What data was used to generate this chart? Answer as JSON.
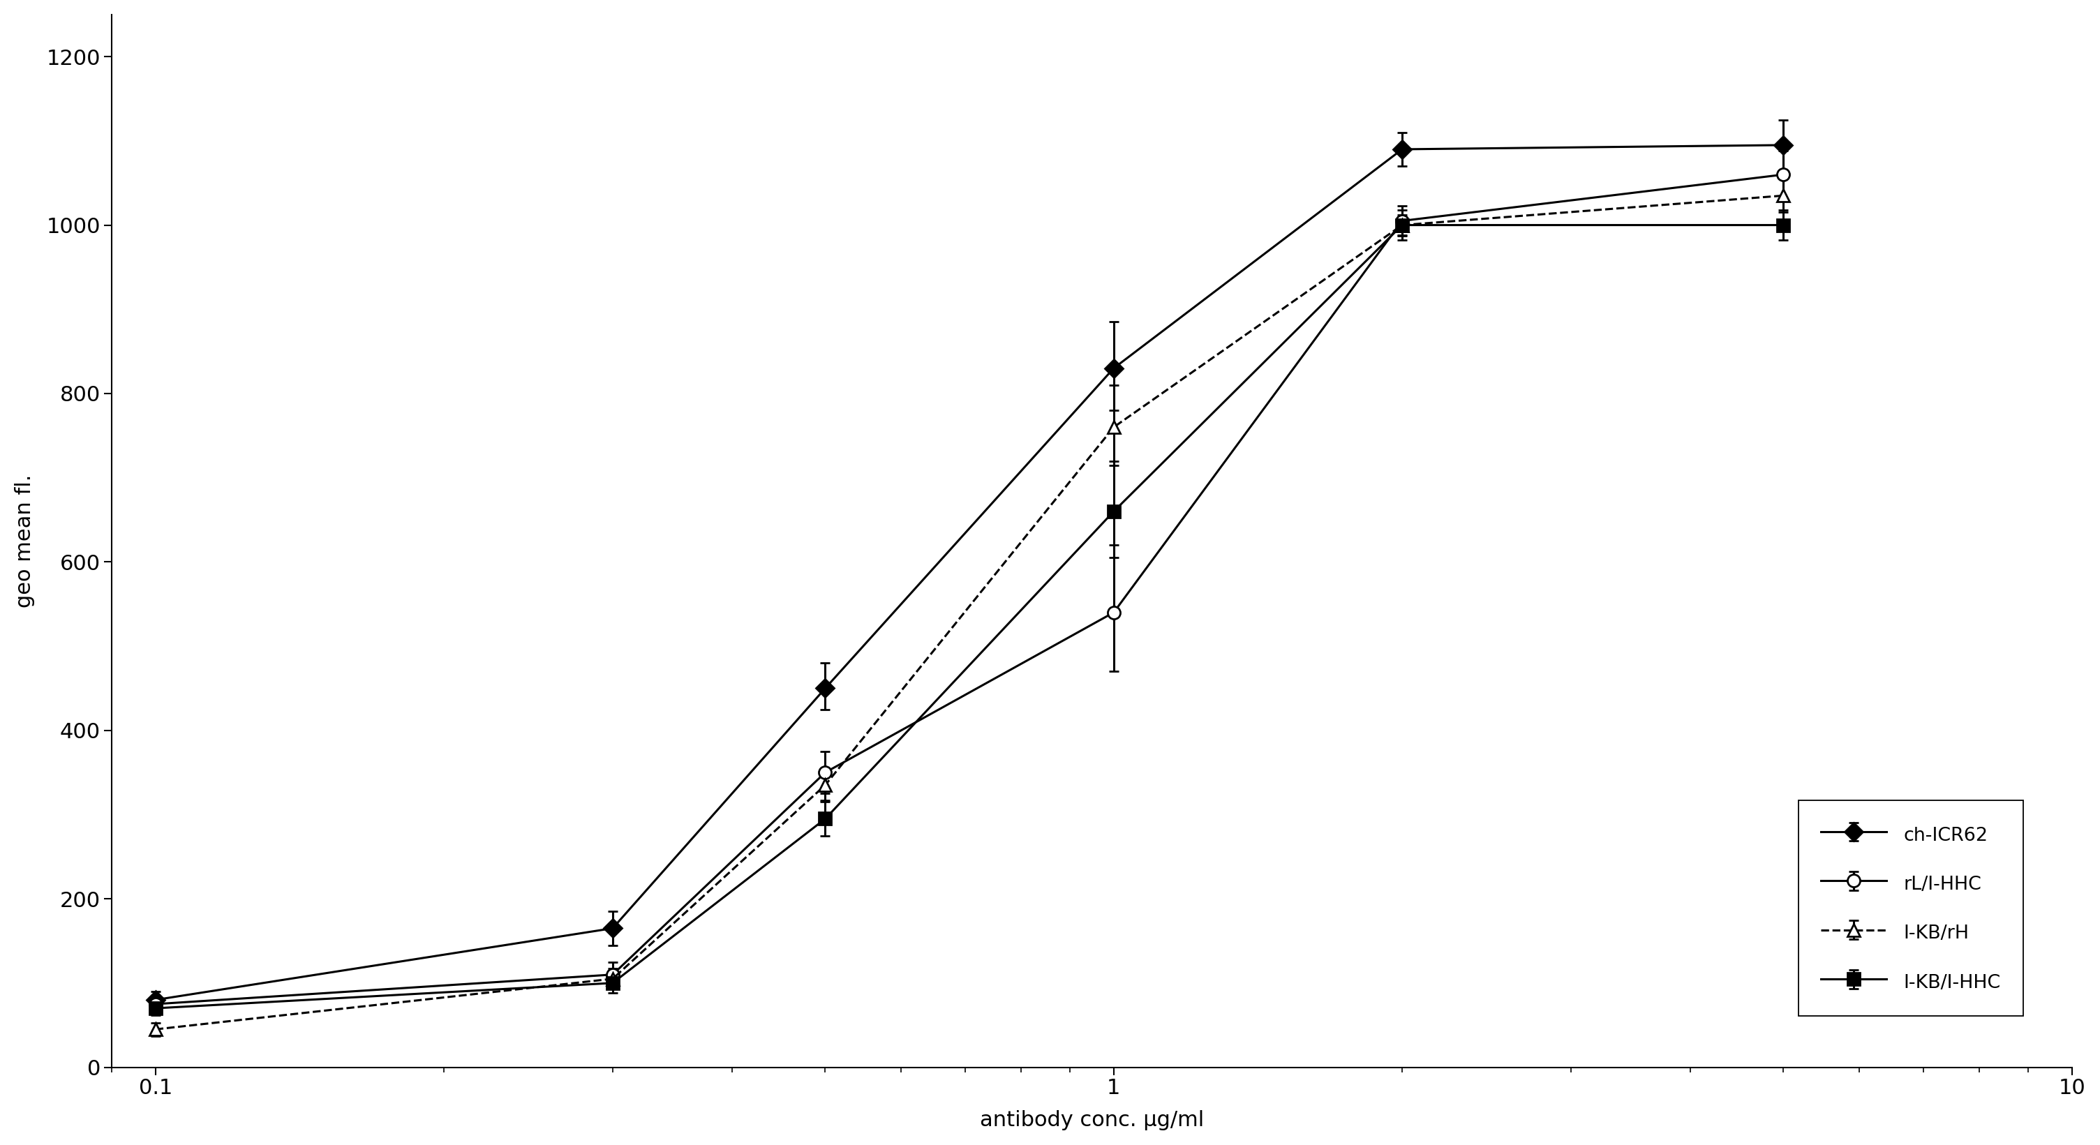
{
  "xlabel": "antibody conc. μg/ml",
  "ylabel": "geo mean fl.",
  "xlim": [
    0.09,
    10
  ],
  "ylim": [
    0,
    1250
  ],
  "yticks": [
    0,
    200,
    400,
    600,
    800,
    1000,
    1200
  ],
  "xticks": [
    0.1,
    1.0,
    10.0
  ],
  "xtick_labels": [
    "0.1",
    "1",
    "10"
  ],
  "background_color": "#ffffff",
  "fontsize": 22,
  "marker_size": 13,
  "linewidth": 2.2,
  "capsize": 5,
  "series": [
    {
      "label": "ch-ICR62",
      "marker": "D",
      "marker_filled": true,
      "linestyle": "-",
      "x": [
        0.1,
        0.3,
        0.5,
        1.0,
        2.0,
        5.0
      ],
      "y": [
        80,
        165,
        450,
        830,
        1090,
        1095
      ],
      "yerr_low": [
        10,
        20,
        25,
        50,
        20,
        30
      ],
      "yerr_high": [
        10,
        20,
        30,
        55,
        20,
        30
      ]
    },
    {
      "label": "rL/I-HHC",
      "marker": "o",
      "marker_filled": false,
      "linestyle": "-",
      "x": [
        0.1,
        0.3,
        0.5,
        1.0,
        2.0,
        5.0
      ],
      "y": [
        75,
        110,
        350,
        540,
        1005,
        1060
      ],
      "yerr_low": [
        8,
        15,
        25,
        70,
        18,
        28
      ],
      "yerr_high": [
        8,
        15,
        25,
        80,
        18,
        28
      ]
    },
    {
      "label": "I-KB/rH",
      "marker": "^",
      "marker_filled": false,
      "linestyle": "--",
      "x": [
        0.1,
        0.3,
        0.5,
        1.0,
        2.0,
        5.0
      ],
      "y": [
        45,
        105,
        335,
        760,
        1000,
        1035
      ],
      "yerr_low": [
        8,
        12,
        18,
        45,
        12,
        20
      ],
      "yerr_high": [
        8,
        12,
        18,
        50,
        12,
        20
      ]
    },
    {
      "label": "I-KB/I-HHC",
      "marker": "s",
      "marker_filled": true,
      "linestyle": "-",
      "x": [
        0.1,
        0.3,
        0.5,
        1.0,
        2.0,
        5.0
      ],
      "y": [
        70,
        100,
        295,
        660,
        1000,
        1000
      ],
      "yerr_low": [
        8,
        12,
        20,
        55,
        18,
        18
      ],
      "yerr_high": [
        8,
        12,
        20,
        60,
        18,
        18
      ]
    }
  ]
}
